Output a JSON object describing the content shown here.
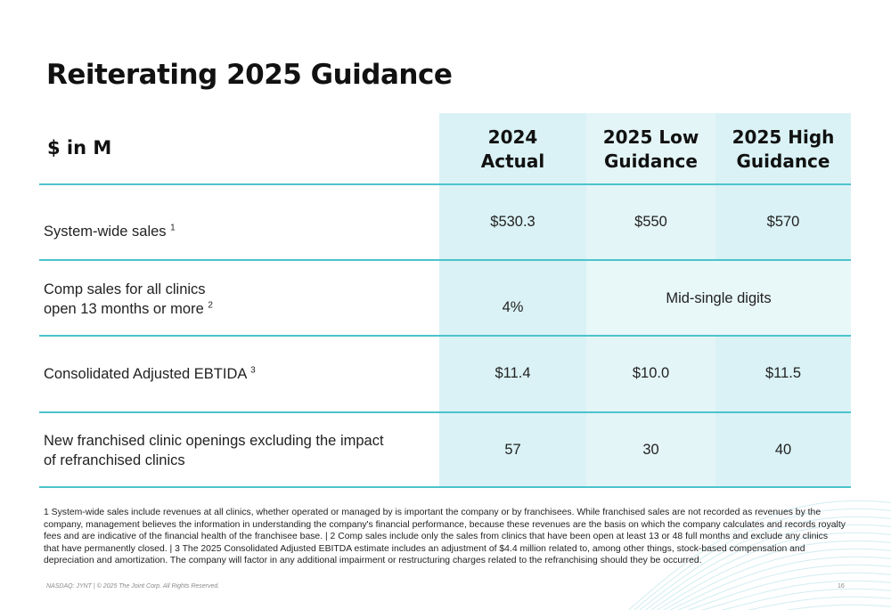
{
  "slide": {
    "title": "Reiterating 2025 Guidance"
  },
  "table": {
    "header_label": "$ in M",
    "columns": [
      {
        "line1": "2024",
        "line2": "Actual"
      },
      {
        "line1": "2025 Low",
        "line2": "Guidance"
      },
      {
        "line1": "2025 High",
        "line2": "Guidance"
      }
    ],
    "rows": [
      {
        "label": "System-wide sales",
        "sup": "1",
        "values": [
          "$530.3",
          "$550",
          "$570"
        ]
      },
      {
        "label_line1": "Comp sales for all clinics",
        "label_line2": "open 13 months or more",
        "sup": "2",
        "actual": "4%",
        "guidance": "Mid-single digits"
      },
      {
        "label": "Consolidated Adjusted EBTIDA",
        "sup": "3",
        "values": [
          "$11.4",
          "$10.0",
          "$11.5"
        ]
      },
      {
        "label_line1": "New franchised clinic openings excluding the impact",
        "label_line2": "of refranchised clinics",
        "values": [
          "57",
          "30",
          "40"
        ]
      }
    ]
  },
  "footnote": "1 System-wide sales include revenues at all clinics, whether operated or managed by is important the company or by franchisees. While franchised sales are not recorded as revenues by the company, management believes the information  in understanding the company's financial performance, because these revenues are the basis on which the company calculates and records royalty fees and are indicative of the financial health of the franchisee base. | 2 Comp sales include only the sales from clinics that have been open at least 13 or 48 full months and exclude any clinics that have permanently closed. | 3 The 2025 Consolidated Adjusted EBITDA estimate includes an adjustment of $4.4 million related to, among other things, stock-based compensation and depreciation and amortization. The company will factor in any additional impairment or restructuring charges related to the refranchising should they be occurred.",
  "footer": {
    "left": "NASDAQ: JYNT  |  © 2025 The Joint Corp. All Rights Reserved.",
    "page_number": "16"
  },
  "colors": {
    "accent": "#4cc3cc",
    "column_tint": "#daf2f5"
  }
}
